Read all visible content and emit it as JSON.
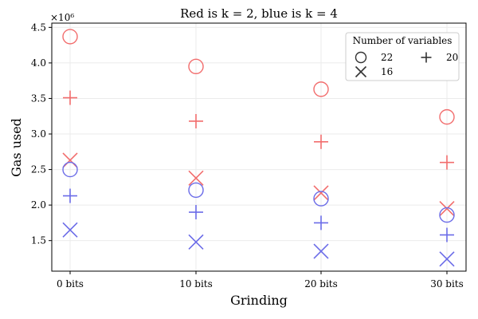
{
  "chart_data": {
    "type": "scatter",
    "title": "Red is k = 2, blue is k = 4",
    "xlabel": "Grinding",
    "ylabel": "Gas used",
    "y_multiplier": "×10⁶",
    "categories": [
      "0 bits",
      "10 bits",
      "20 bits",
      "30 bits"
    ],
    "yticks": [
      "1.5",
      "2.0",
      "2.5",
      "3.0",
      "3.5",
      "4.0",
      "4.5"
    ],
    "ylim": [
      1.07,
      4.56
    ],
    "grid": true,
    "legend": {
      "title": "Number of variables",
      "placement": "top-right",
      "entries": [
        {
          "label": "22",
          "marker": "circle"
        },
        {
          "label": "16",
          "marker": "x"
        },
        {
          "label": "20",
          "marker": "plus"
        }
      ]
    },
    "series": [
      {
        "k": 2,
        "variables": "22",
        "marker": "circle",
        "color": "#f26d6d",
        "values": [
          4.37,
          3.95,
          3.63,
          3.24
        ]
      },
      {
        "k": 2,
        "variables": "20",
        "marker": "plus",
        "color": "#f26d6d",
        "values": [
          3.51,
          3.18,
          2.89,
          2.6
        ]
      },
      {
        "k": 2,
        "variables": "16",
        "marker": "x",
        "color": "#f26d6d",
        "values": [
          2.63,
          2.38,
          2.17,
          1.95
        ]
      },
      {
        "k": 4,
        "variables": "22",
        "marker": "circle",
        "color": "#6b6ce8",
        "values": [
          2.5,
          2.21,
          2.09,
          1.86
        ]
      },
      {
        "k": 4,
        "variables": "20",
        "marker": "plus",
        "color": "#6b6ce8",
        "values": [
          2.13,
          1.9,
          1.75,
          1.58
        ]
      },
      {
        "k": 4,
        "variables": "16",
        "marker": "x",
        "color": "#6b6ce8",
        "values": [
          1.65,
          1.48,
          1.35,
          1.24
        ]
      }
    ]
  }
}
